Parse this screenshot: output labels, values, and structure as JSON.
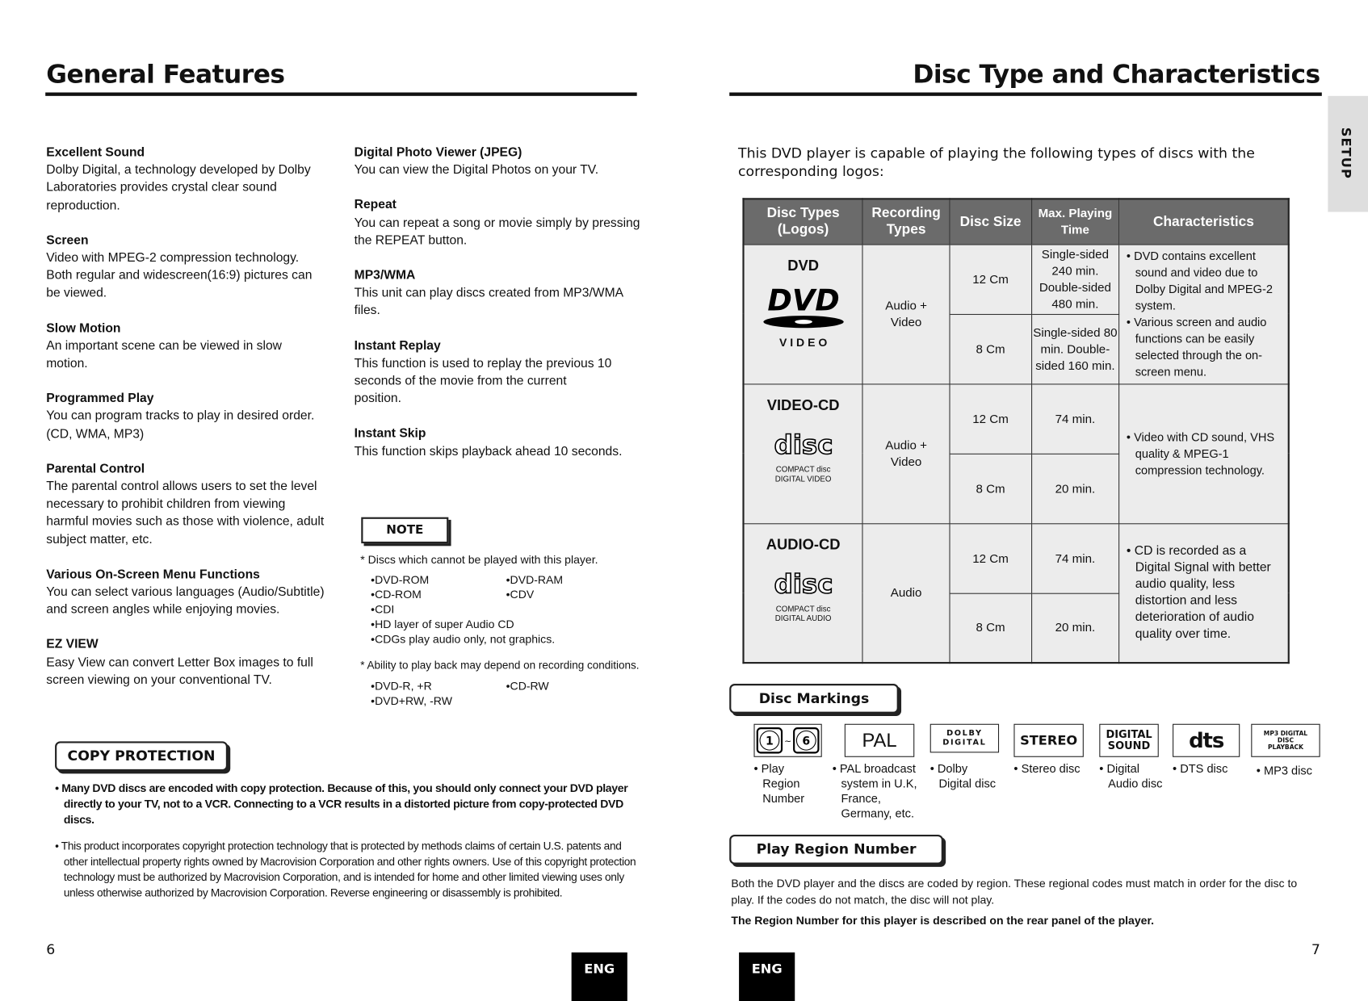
{
  "left": {
    "title": "General Features",
    "col1": [
      {
        "h": "Excellent Sound",
        "t": "Dolby Digital, a technology developed by Dolby Laboratories provides crystal clear sound reproduction."
      },
      {
        "h": "Screen",
        "t": "Video with MPEG-2 compression technology. Both regular and widescreen(16:9) pictures can be viewed."
      },
      {
        "h": "Slow Motion",
        "t": "An important scene can be viewed in slow motion."
      },
      {
        "h": "Programmed Play",
        "t": "You can program tracks to play in desired order. (CD, WMA, MP3)"
      },
      {
        "h": "Parental Control",
        "t": "The parental control allows users to set the level necessary to prohibit children from viewing harmful movies such as those with violence, adult subject matter, etc."
      },
      {
        "h": "Various On-Screen Menu Functions",
        "t": "You can select various languages (Audio/Subtitle) and screen angles while enjoying movies."
      },
      {
        "h": "EZ VIEW",
        "t": "Easy View can convert Letter Box images to full screen viewing on your conventional TV."
      }
    ],
    "col2": [
      {
        "h": "Digital Photo Viewer (JPEG)",
        "t": "You can view the Digital Photos on your TV."
      },
      {
        "h": "Repeat",
        "t": "You can repeat a song or movie simply by pressing the REPEAT button."
      },
      {
        "h": "MP3/WMA",
        "t": "This unit can play discs created from MP3/WMA files."
      },
      {
        "h": "Instant Replay",
        "t": "This function is used to replay the previous 10 seconds of the movie from the current position."
      },
      {
        "h": "Instant Skip",
        "t": "This function skips playback ahead 10 seconds."
      }
    ],
    "note": {
      "label": "NOTE",
      "star1": "* Discs which cannot be played with this player.",
      "list1": [
        "DVD-ROM",
        "DVD-RAM",
        "CD-ROM",
        "CDV",
        "CDI",
        "HD layer of super Audio CD",
        "CDGs play audio only, not graphics."
      ],
      "star2": "* Ability to play back may depend on recording conditions.",
      "list2": [
        "DVD-R, +R",
        "CD-RW",
        "DVD+RW, -RW"
      ]
    },
    "copy": {
      "label": "COPY PROTECTION",
      "bold": "Many DVD discs are encoded with copy protection. Because of this, you should only connect your DVD player directly to your TV, not to a VCR. Connecting to a VCR results in a distorted picture from copy-protected DVD discs.",
      "normal": "This product incorporates copyright protection technology that is protected by methods claims of certain U.S. patents and other intellectual property rights owned by Macrovision Corporation and other rights owners. Use of this copyright protection technology must be authorized by Macrovision Corporation, and is intended for home and other limited viewing uses only unless otherwise authorized by Macrovision Corporation. Reverse engineering or disassembly is prohibited."
    },
    "page": "6",
    "lang": "ENG"
  },
  "right": {
    "title": "Disc Type and Characteristics",
    "side_tab": "SETUP",
    "intro": "This DVD player is capable of playing the following types of discs with the corresponding logos:",
    "headers": [
      "Disc Types (Logos)",
      "Recording Types",
      "Disc Size",
      "Max. Playing Time",
      "Characteristics"
    ],
    "rows": [
      {
        "name": "DVD",
        "logo_text": "V I D E O",
        "rec": "Audio + Video",
        "sizes": [
          "12 Cm",
          "8 Cm"
        ],
        "times": [
          "Single-sided 240 min. Double-sided 480 min.",
          "Single-sided 80 min. Double-sided 160 min."
        ],
        "chars": [
          "DVD contains excellent sound and video due to Dolby Digital and MPEG-2 system.",
          "Various screen and audio functions can be easily selected through the on-screen menu."
        ]
      },
      {
        "name": "VIDEO-CD",
        "logo_text": "COMPACT disc DIGITAL VIDEO",
        "rec": "Audio + Video",
        "sizes": [
          "12 Cm",
          "8 Cm"
        ],
        "times": [
          "74 min.",
          "20 min."
        ],
        "chars": [
          "Video with CD sound, VHS quality & MPEG-1 compression technology."
        ]
      },
      {
        "name": "AUDIO-CD",
        "logo_text": "COMPACT disc DIGITAL AUDIO",
        "rec": "Audio",
        "sizes": [
          "12 Cm",
          "8 Cm"
        ],
        "times": [
          "74 min.",
          "20 min."
        ],
        "chars": [
          "CD is recorded as a Digital Signal with better audio quality, less distortion and less deterioration of audio quality over time."
        ]
      }
    ],
    "markings_label": "Disc Markings",
    "markings": [
      {
        "logo": "1 ~ 6",
        "cap": "Play Region Number"
      },
      {
        "logo": "PAL",
        "cap": "PAL broadcast system in U.K, France, Germany, etc."
      },
      {
        "logo": "DOLBY DIGITAL",
        "cap": "Dolby Digital disc"
      },
      {
        "logo": "STEREO",
        "cap": "Stereo disc"
      },
      {
        "logo": "DIGITAL SOUND",
        "cap": "Digital Audio disc"
      },
      {
        "logo": "dts",
        "cap": "DTS disc"
      },
      {
        "logo": "MP3 DIGITAL DISC PLAYBACK",
        "cap": "MP3 disc"
      }
    ],
    "region_label": "Play Region Number",
    "region_text": "Both the DVD player and the discs are coded by region. These regional codes must match in order for the disc to play. If the codes do not match, the disc will not play.",
    "region_bold": "The Region Number for this player is described on the rear panel of the player.",
    "page": "7",
    "lang": "ENG"
  }
}
